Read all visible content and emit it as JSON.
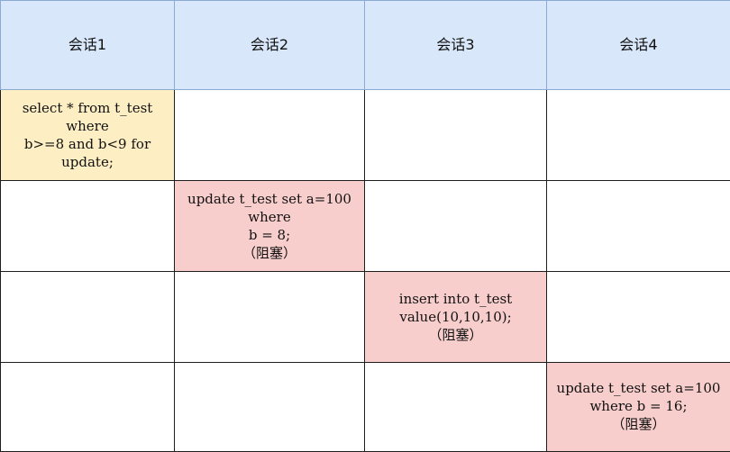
{
  "sessions": [
    "会话1",
    "会话2",
    "会话3",
    "会话4"
  ],
  "steps": [
    {
      "session": 1,
      "lines": [
        "select * from t_test where",
        "b>=8 and b<9 for update;"
      ],
      "note": "",
      "color": "#fdeec4"
    },
    {
      "session": 2,
      "lines": [
        "update t_test set a=100 where",
        "b = 8;"
      ],
      "note": "（阻塞）",
      "color": "#f8cecd"
    },
    {
      "session": 3,
      "lines": [
        "insert into t_test",
        "value(10,10,10);"
      ],
      "note": "（阻塞）",
      "color": "#f8cecd"
    },
    {
      "session": 4,
      "lines": [
        "update t_test set a=100",
        "where b = 16;"
      ],
      "note": "（阻塞）",
      "color": "#f8cecd"
    }
  ]
}
